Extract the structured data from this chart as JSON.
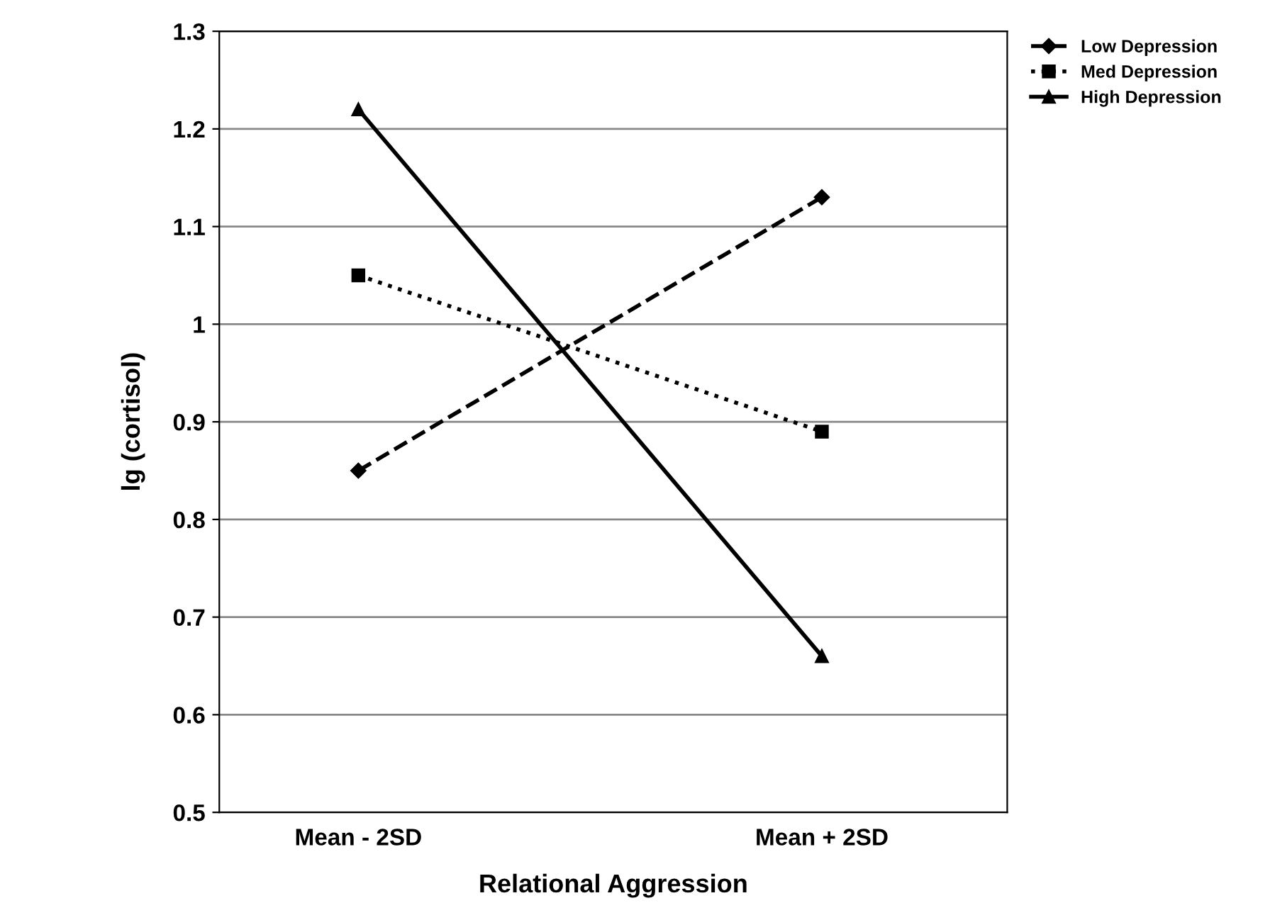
{
  "chart_data": {
    "type": "line",
    "xlabel": "Relational Aggression",
    "ylabel": "lg (cortisol)",
    "categories": [
      "Mean - 2SD",
      "Mean + 2SD"
    ],
    "series": [
      {
        "name": "Low Depression",
        "color": "#000000",
        "values": [
          0.85,
          1.13
        ],
        "marker": "diamond",
        "line_style": "dashed"
      },
      {
        "name": "Med Depression",
        "color": "#000000",
        "values": [
          1.05,
          0.89
        ],
        "marker": "square",
        "line_style": "dotted"
      },
      {
        "name": "High Depression",
        "color": "#000000",
        "values": [
          1.22,
          0.66
        ],
        "marker": "triangle",
        "line_style": "solid"
      }
    ],
    "ylim": [
      0.5,
      1.3
    ],
    "yticks": [
      0.5,
      0.6,
      0.7,
      0.8,
      0.9,
      1,
      1.1,
      1.2,
      1.3
    ],
    "grid": "y",
    "legend": "top right"
  }
}
